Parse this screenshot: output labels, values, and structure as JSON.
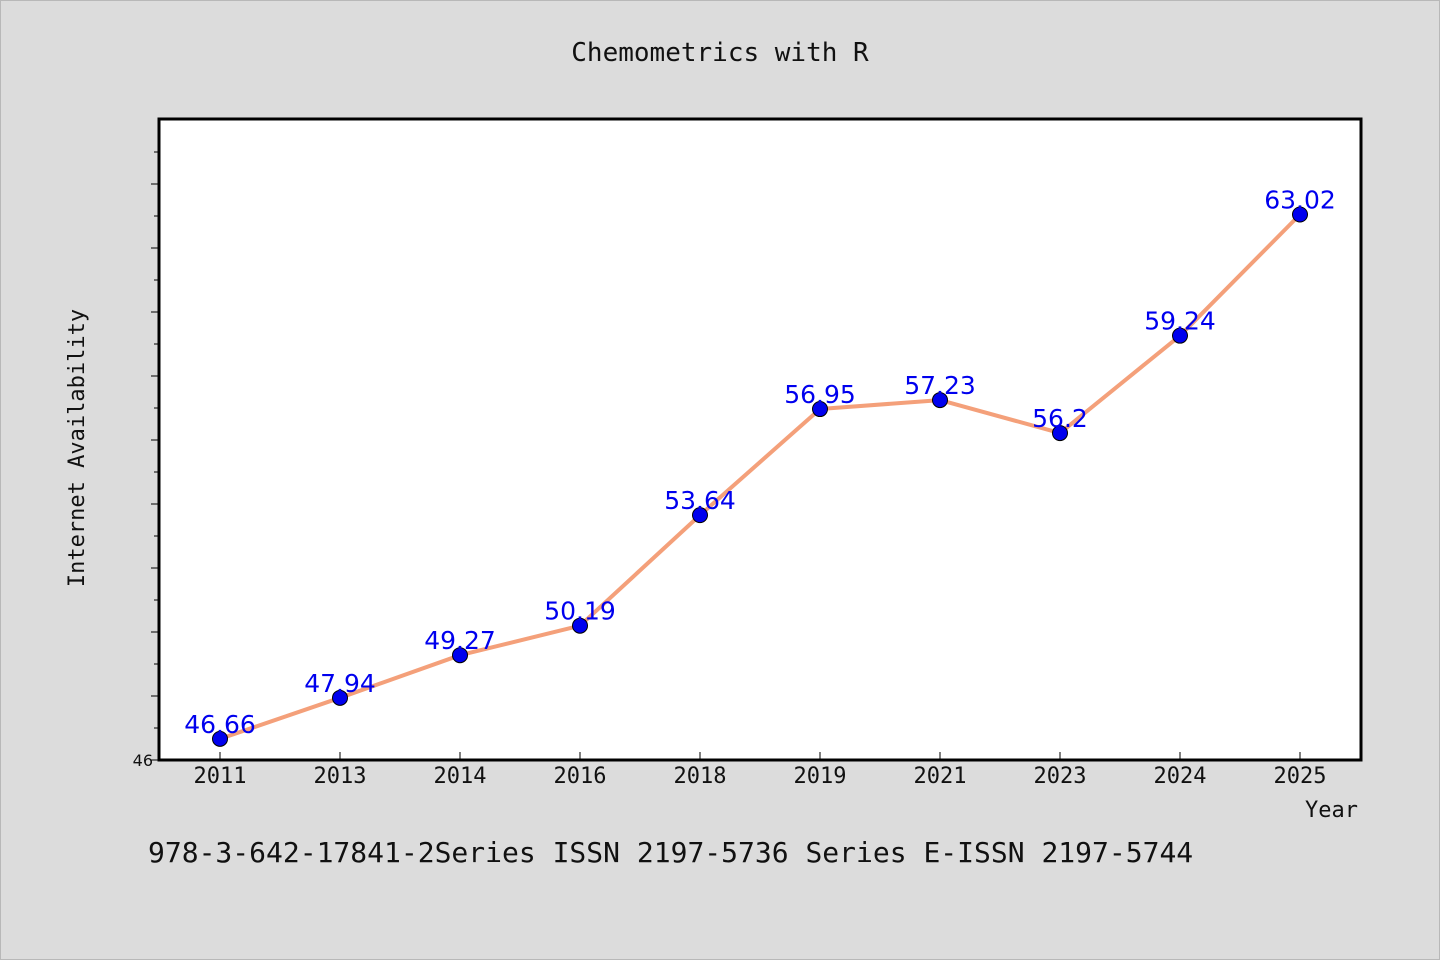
{
  "chart_data": {
    "type": "line",
    "title": "Chemometrics with R",
    "xlabel": "Year",
    "ylabel": "Internet Availability",
    "categories": [
      "2011",
      "2013",
      "2014",
      "2016",
      "2018",
      "2019",
      "2021",
      "2023",
      "2024",
      "2025"
    ],
    "series": [
      {
        "values": [
          46.66,
          47.94,
          49.27,
          50.19,
          53.64,
          56.95,
          57.23,
          56.2,
          59.24,
          63.02
        ],
        "labels": [
          "46.66",
          "47.94",
          "49.27",
          "50.19",
          "53.64",
          "56.95",
          "57.23",
          "56.2",
          "59.24",
          "63.02"
        ],
        "line_color": "#f4a07a",
        "marker_color": "#0000ee",
        "label_color": "#0000ee"
      }
    ],
    "ylim": [
      46,
      66
    ],
    "y_tick_labels": [
      "46"
    ],
    "grid": false,
    "footer": "978-3-642-17841-2Series ISSN 2197-5736 Series E-ISSN 2197-5744"
  }
}
